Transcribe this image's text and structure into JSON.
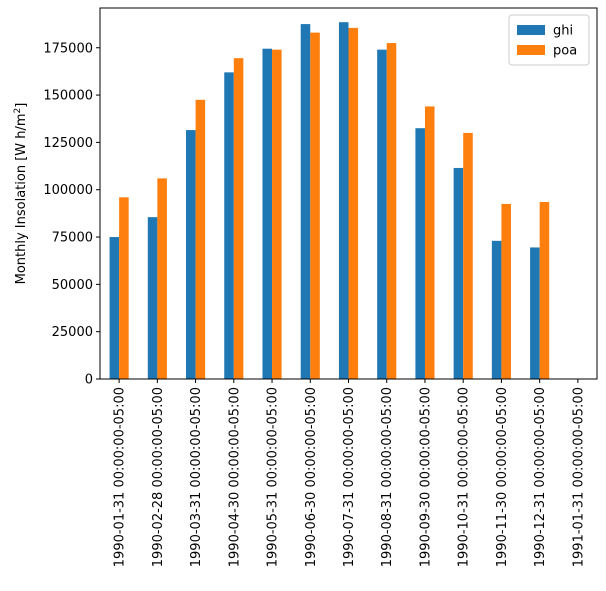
{
  "chart_data": {
    "type": "bar",
    "title": "",
    "xlabel": "",
    "ylabel": "Monthly Insolation [W h/m²]",
    "ylabel_parts": {
      "main": "Monthly Insolation [W h/m",
      "sup": "2",
      "end": "]"
    },
    "ylim": [
      0,
      196000
    ],
    "yticks": [
      0,
      25000,
      50000,
      75000,
      100000,
      125000,
      150000,
      175000
    ],
    "grid": false,
    "legend_position": "upper right",
    "categories": [
      "1990-01-31 00:00:00-05:00",
      "1990-02-28 00:00:00-05:00",
      "1990-03-31 00:00:00-05:00",
      "1990-04-30 00:00:00-05:00",
      "1990-05-31 00:00:00-05:00",
      "1990-06-30 00:00:00-05:00",
      "1990-07-31 00:00:00-05:00",
      "1990-08-31 00:00:00-05:00",
      "1990-09-30 00:00:00-05:00",
      "1990-10-31 00:00:00-05:00",
      "1990-11-30 00:00:00-05:00",
      "1990-12-31 00:00:00-05:00",
      "1991-01-31 00:00:00-05:00"
    ],
    "series": [
      {
        "name": "ghi",
        "color": "#1f77b4",
        "values": [
          75000,
          85500,
          131500,
          162000,
          174500,
          187500,
          188500,
          174000,
          132500,
          111500,
          73000,
          69500,
          0
        ]
      },
      {
        "name": "poa",
        "color": "#ff7f0e",
        "values": [
          96000,
          106000,
          147500,
          169500,
          174000,
          183000,
          185500,
          177500,
          144000,
          130000,
          92500,
          93500,
          0
        ]
      }
    ]
  }
}
